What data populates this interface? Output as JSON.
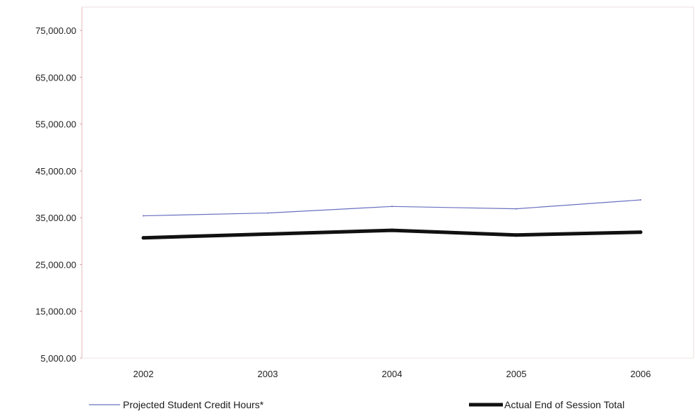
{
  "chart_data": {
    "type": "line",
    "title": "",
    "xlabel": "",
    "ylabel": "",
    "categories": [
      "2002",
      "2003",
      "2004",
      "2005",
      "2006"
    ],
    "ylim": [
      5000,
      80000
    ],
    "yticks": [
      5000,
      15000,
      25000,
      35000,
      45000,
      55000,
      65000,
      75000
    ],
    "ytick_labels": [
      "5,000.00",
      "15,000.00",
      "25,000.00",
      "35,000.00",
      "45,000.00",
      "55,000.00",
      "65,000.00",
      "75,000.00"
    ],
    "grid": false,
    "legend_position": "bottom",
    "series": [
      {
        "name": "Projected Student Credit Hours*",
        "values": [
          35400,
          36000,
          37400,
          36900,
          38800
        ],
        "color": "#6a70c0"
      },
      {
        "name": "Actual End of Session Total",
        "values": [
          30700,
          31500,
          32300,
          31300,
          31900
        ],
        "color": "#111111"
      }
    ]
  }
}
